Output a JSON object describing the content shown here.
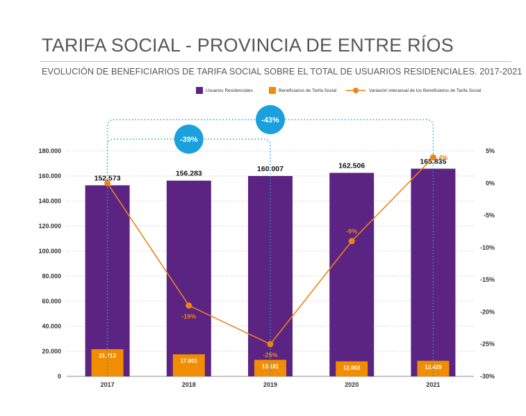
{
  "title": "TARIFA SOCIAL - PROVINCIA DE ENTRE RÍOS",
  "subtitle": "EVOLUCIÓN DE BENEFICIARIOS DE TARIFA SOCIAL SOBRE EL TOTAL DE USUARIOS RESIDENCIALES. 2017-2021",
  "colors": {
    "residential": "#5b2382",
    "beneficiaries": "#f28c00",
    "variation": "#ea8416",
    "badge": "#1aa0dc",
    "connector": "#1aa0dc"
  },
  "legend": [
    "Usuarios Residenciales",
    "Beneficiarios de Tarifa Social",
    "Variación interanual de los Beneficiarios de Tarifa Social"
  ],
  "chart_data": {
    "type": "bar",
    "categories": [
      "2017",
      "2018",
      "2019",
      "2020",
      "2021"
    ],
    "series": [
      {
        "name": "Usuarios Residenciales",
        "kind": "bar",
        "axis": "left",
        "values": [
          152573,
          156283,
          160007,
          162506,
          165835
        ],
        "labels": [
          "152.573",
          "156.283",
          "160.007",
          "162.506",
          "165.835"
        ]
      },
      {
        "name": "Beneficiarios de Tarifa Social",
        "kind": "bar",
        "axis": "left",
        "values": [
          21713,
          17601,
          13181,
          12003,
          12429
        ],
        "labels": [
          "21.713",
          "17.601",
          "13.181",
          "12.003",
          "12.429"
        ]
      },
      {
        "name": "Variación interanual de los Beneficiarios de Tarifa Social",
        "kind": "line",
        "axis": "right",
        "values": [
          0,
          -19,
          -25,
          -9,
          4
        ],
        "labels": [
          "",
          "-19%",
          "-25%",
          "-9%",
          "4%"
        ]
      }
    ],
    "left_axis": {
      "range": [
        0,
        180000
      ],
      "ticks": [
        "0",
        "20.000",
        "40.000",
        "60.000",
        "80.000",
        "100.000",
        "120.000",
        "140.000",
        "160.000",
        "180.000"
      ]
    },
    "right_axis": {
      "range": [
        -30,
        5
      ],
      "ticks": [
        "5%",
        "0%",
        "-5%",
        "-10%",
        "-15%",
        "-20%",
        "-25%",
        "-30%"
      ]
    },
    "grid": true,
    "legend_position": "top-right",
    "annotations": [
      {
        "label": "-39%",
        "from": "2017",
        "to": "2019"
      },
      {
        "label": "-43%",
        "from": "2017",
        "to": "2021"
      }
    ]
  }
}
